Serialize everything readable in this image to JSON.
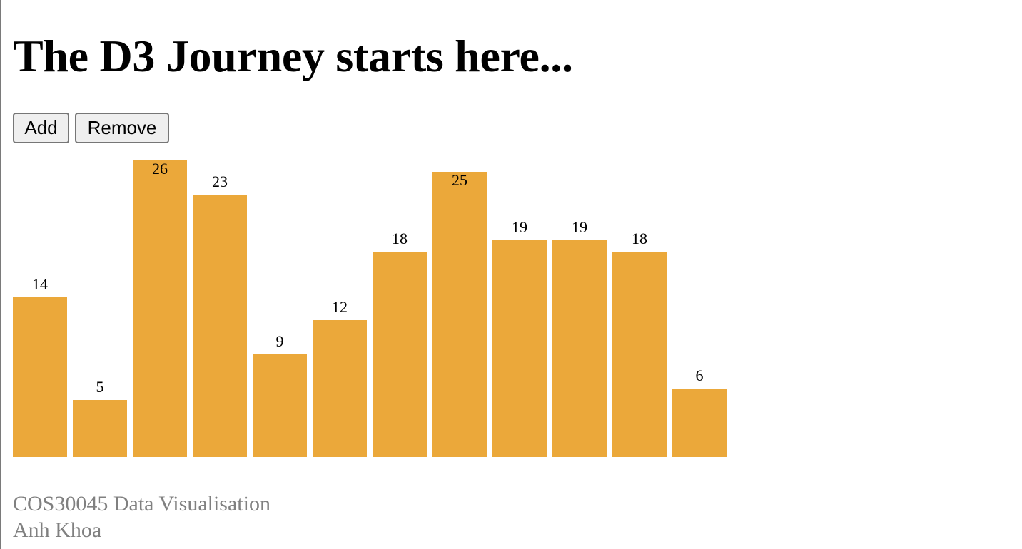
{
  "page": {
    "title": "The D3 Journey starts here...",
    "buttons": {
      "add_label": "Add",
      "remove_label": "Remove"
    },
    "footer": {
      "course": "COS30045 Data Visualisation",
      "author": "Anh Khoa"
    }
  },
  "colors": {
    "bar": "#EBA83A",
    "label": "#000000",
    "footer_text": "#808080"
  },
  "chart_data": {
    "type": "bar",
    "values": [
      14,
      5,
      26,
      23,
      9,
      12,
      18,
      25,
      19,
      19,
      18,
      6
    ],
    "data_labels": [
      "14",
      "5",
      "26",
      "23",
      "9",
      "12",
      "18",
      "25",
      "19",
      "19",
      "18",
      "6"
    ],
    "xlabel": "",
    "ylabel": "",
    "axes_shown": false,
    "grid": false
  }
}
